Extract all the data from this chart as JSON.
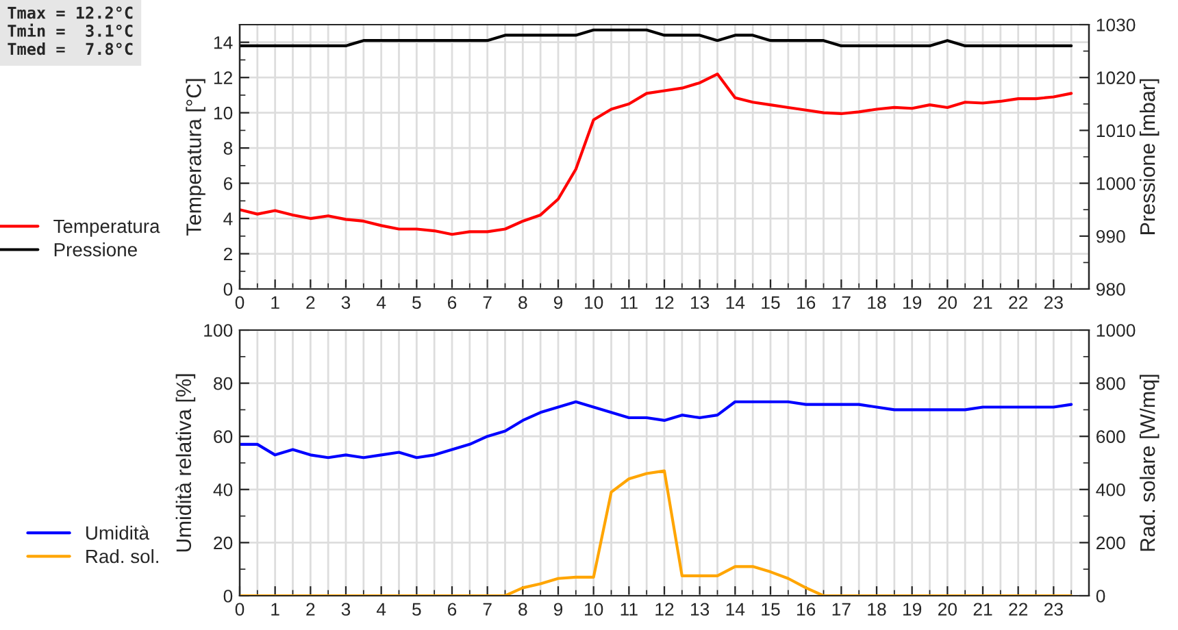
{
  "chart_data": [
    {
      "type": "line",
      "xlim": [
        0,
        24
      ],
      "xticks": [
        0,
        1,
        2,
        3,
        4,
        5,
        6,
        7,
        8,
        9,
        10,
        11,
        12,
        13,
        14,
        15,
        16,
        17,
        18,
        19,
        20,
        21,
        22,
        23
      ],
      "ylabel": "Temperatura [°C]",
      "y2label": "Pressione [mbar]",
      "ylim": [
        0,
        15
      ],
      "yticks": [
        0,
        2,
        4,
        6,
        8,
        10,
        12,
        14
      ],
      "y2lim": [
        980,
        1030
      ],
      "y2ticks": [
        980,
        990,
        1000,
        1010,
        1020,
        1030
      ],
      "grid": true,
      "legend": "left",
      "annotations": [
        "Tmax = 12.2°C",
        "Tmin =  3.1°C",
        "Tmed =  7.8°C"
      ],
      "x": [
        0,
        0.5,
        1,
        1.5,
        2,
        2.5,
        3,
        3.5,
        4,
        4.5,
        5,
        5.5,
        6,
        6.5,
        7,
        7.5,
        8,
        8.5,
        9,
        9.5,
        10,
        10.5,
        11,
        11.5,
        12,
        12.5,
        13,
        13.5,
        14,
        14.5,
        15,
        15.5,
        16,
        16.5,
        17,
        17.5,
        18,
        18.5,
        19,
        19.5,
        20,
        20.5,
        21,
        21.5,
        22,
        22.5,
        23,
        23.5
      ],
      "series": [
        {
          "name": "Temperatura",
          "color": "#ff0000",
          "values": [
            4.5,
            4.25,
            4.45,
            4.2,
            4.0,
            4.15,
            3.95,
            3.85,
            3.6,
            3.4,
            3.4,
            3.3,
            3.1,
            3.25,
            3.25,
            3.4,
            3.85,
            4.2,
            5.1,
            6.8,
            9.6,
            10.2,
            10.5,
            11.1,
            11.25,
            11.4,
            11.7,
            12.2,
            10.85,
            10.6,
            10.45,
            10.3,
            10.15,
            10.0,
            9.95,
            10.05,
            10.2,
            10.3,
            10.25,
            10.45,
            10.3,
            10.6,
            10.55,
            10.65,
            10.8,
            10.8,
            10.9,
            11.1
          ]
        },
        {
          "name": "Pressione",
          "color": "#000000",
          "axis": "y2",
          "values": [
            1026,
            1026,
            1026,
            1026,
            1026,
            1026,
            1026,
            1027,
            1027,
            1027,
            1027,
            1027,
            1027,
            1027,
            1027,
            1028,
            1028,
            1028,
            1028,
            1028,
            1029,
            1029,
            1029,
            1029,
            1028,
            1028,
            1028,
            1027,
            1028,
            1028,
            1027,
            1027,
            1027,
            1027,
            1026,
            1026,
            1026,
            1026,
            1026,
            1026,
            1027,
            1026,
            1026,
            1026,
            1026,
            1026,
            1026,
            1026
          ]
        }
      ]
    },
    {
      "type": "line",
      "xlim": [
        0,
        24
      ],
      "xticks": [
        0,
        1,
        2,
        3,
        4,
        5,
        6,
        7,
        8,
        9,
        10,
        11,
        12,
        13,
        14,
        15,
        16,
        17,
        18,
        19,
        20,
        21,
        22,
        23
      ],
      "ylabel": "Umidità relativa [%]",
      "y2label": "Rad. solare [W/mq]",
      "ylim": [
        0,
        100
      ],
      "yticks": [
        0,
        20,
        40,
        60,
        80,
        100
      ],
      "y2lim": [
        0,
        1000
      ],
      "y2ticks": [
        0,
        200,
        400,
        600,
        800,
        1000
      ],
      "grid": true,
      "legend": "left",
      "x": [
        0,
        0.5,
        1,
        1.5,
        2,
        2.5,
        3,
        3.5,
        4,
        4.5,
        5,
        5.5,
        6,
        6.5,
        7,
        7.5,
        8,
        8.5,
        9,
        9.5,
        10,
        10.5,
        11,
        11.5,
        12,
        12.5,
        13,
        13.5,
        14,
        14.5,
        15,
        15.5,
        16,
        16.5,
        17,
        17.5,
        18,
        18.5,
        19,
        19.5,
        20,
        20.5,
        21,
        21.5,
        22,
        22.5,
        23,
        23.5
      ],
      "series": [
        {
          "name": "Umidità",
          "color": "#0000ff",
          "values": [
            57,
            57,
            53,
            55,
            53,
            52,
            53,
            52,
            53,
            54,
            52,
            53,
            55,
            57,
            60,
            62,
            66,
            69,
            71,
            73,
            71,
            69,
            67,
            67,
            66,
            68,
            67,
            68,
            73,
            73,
            73,
            73,
            72,
            72,
            72,
            72,
            71,
            70,
            70,
            70,
            70,
            70,
            71,
            71,
            71,
            71,
            71,
            72
          ]
        },
        {
          "name": "Rad. sol.",
          "color": "#ffa500",
          "axis": "y2",
          "values": [
            0,
            0,
            0,
            0,
            0,
            0,
            0,
            0,
            0,
            0,
            0,
            0,
            0,
            0,
            0,
            0,
            30,
            45,
            65,
            70,
            70,
            390,
            440,
            460,
            470,
            75,
            75,
            75,
            110,
            110,
            90,
            65,
            30,
            0,
            0,
            0,
            0,
            0,
            0,
            0,
            0,
            0,
            0,
            0,
            0,
            0,
            0,
            0
          ]
        }
      ]
    }
  ]
}
